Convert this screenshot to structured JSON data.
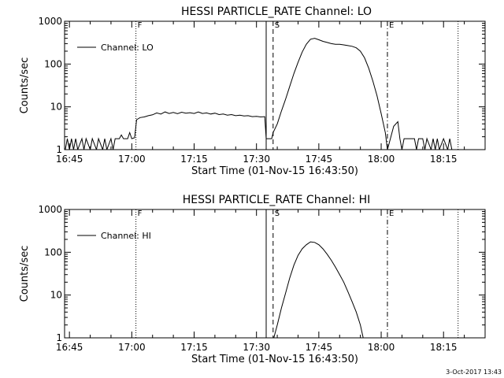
{
  "chart_data": [
    {
      "type": "line",
      "title": "HESSI PARTICLE_RATE Channel: LO",
      "xlabel": "Start Time (01-Nov-15 16:43:50)",
      "ylabel": "Counts/sec",
      "yscale": "log",
      "ylim": [
        1,
        1000
      ],
      "xlim": [
        "16:43:50",
        "18:25:00"
      ],
      "xticks": [
        "16:45",
        "17:00",
        "17:15",
        "17:30",
        "17:45",
        "18:00",
        "18:15"
      ],
      "yticks": [
        "1",
        "10",
        "100",
        "1000"
      ],
      "legend": {
        "position": "top-left",
        "entries": [
          "Channel: LO"
        ]
      },
      "grid": false,
      "flags": [
        {
          "time": "17:01:00",
          "label": "F",
          "style": "dotted"
        },
        {
          "time": "17:32:20",
          "label": "",
          "style": "solid"
        },
        {
          "time": "17:34:00",
          "label": "S",
          "style": "dashed"
        },
        {
          "time": "18:01:30",
          "label": "E",
          "style": "dashdot"
        },
        {
          "time": "18:18:30",
          "label": "",
          "style": "dotted"
        }
      ],
      "series": [
        {
          "values": [
            [
              "16:44:00",
              1
            ],
            [
              "16:44:30",
              1.8
            ],
            [
              "16:45:00",
              1
            ],
            [
              "16:45:30",
              1.8
            ],
            [
              "16:46:00",
              1
            ],
            [
              "16:46:30",
              1.8
            ],
            [
              "16:47:00",
              1
            ],
            [
              "16:48:00",
              1.8
            ],
            [
              "16:48:30",
              1
            ],
            [
              "16:49:00",
              1.8
            ],
            [
              "16:50:00",
              1
            ],
            [
              "16:50:30",
              1.8
            ],
            [
              "16:51:30",
              1
            ],
            [
              "16:52:00",
              1.8
            ],
            [
              "16:53:00",
              1
            ],
            [
              "16:53:30",
              1.8
            ],
            [
              "16:54:00",
              1
            ],
            [
              "16:55:00",
              1.8
            ],
            [
              "16:55:30",
              1
            ],
            [
              "16:56:00",
              1.8
            ],
            [
              "16:57:00",
              1.8
            ],
            [
              "16:57:30",
              2.2
            ],
            [
              "16:58:00",
              1.8
            ],
            [
              "16:59:00",
              1.8
            ],
            [
              "16:59:30",
              2.5
            ],
            [
              "17:00:00",
              1.8
            ],
            [
              "17:00:40",
              1.9
            ],
            [
              "17:01:10",
              5
            ],
            [
              "17:02:00",
              5.6
            ],
            [
              "17:03:00",
              5.8
            ],
            [
              "17:04:00",
              6.2
            ],
            [
              "17:05:00",
              6.5
            ],
            [
              "17:06:00",
              7.2
            ],
            [
              "17:07:00",
              6.8
            ],
            [
              "17:08:00",
              7.6
            ],
            [
              "17:09:00",
              7
            ],
            [
              "17:10:00",
              7.4
            ],
            [
              "17:11:00",
              6.9
            ],
            [
              "17:12:00",
              7.5
            ],
            [
              "17:13:00",
              7.1
            ],
            [
              "17:14:00",
              7.3
            ],
            [
              "17:15:00",
              7
            ],
            [
              "17:16:00",
              7.6
            ],
            [
              "17:17:00",
              7
            ],
            [
              "17:18:00",
              7.2
            ],
            [
              "17:19:00",
              6.8
            ],
            [
              "17:20:00",
              7.1
            ],
            [
              "17:21:00",
              6.6
            ],
            [
              "17:22:00",
              6.8
            ],
            [
              "17:23:00",
              6.4
            ],
            [
              "17:24:00",
              6.6
            ],
            [
              "17:25:00",
              6.2
            ],
            [
              "17:26:00",
              6.4
            ],
            [
              "17:27:00",
              6.1
            ],
            [
              "17:28:00",
              6.2
            ],
            [
              "17:29:00",
              5.9
            ],
            [
              "17:30:00",
              6
            ],
            [
              "17:31:00",
              5.8
            ],
            [
              "17:32:00",
              5.9
            ],
            [
              "17:32:20",
              1.8
            ],
            [
              "17:33:00",
              1.8
            ],
            [
              "17:33:40",
              1.8
            ],
            [
              "17:34:00",
              2.5
            ],
            [
              "17:35:00",
              4
            ],
            [
              "17:36:00",
              8
            ],
            [
              "17:37:00",
              15
            ],
            [
              "17:38:00",
              30
            ],
            [
              "17:39:00",
              60
            ],
            [
              "17:40:00",
              110
            ],
            [
              "17:41:00",
              190
            ],
            [
              "17:42:00",
              290
            ],
            [
              "17:43:00",
              380
            ],
            [
              "17:44:00",
              400
            ],
            [
              "17:45:00",
              370
            ],
            [
              "17:46:00",
              340
            ],
            [
              "17:47:00",
              320
            ],
            [
              "17:48:00",
              300
            ],
            [
              "17:49:00",
              290
            ],
            [
              "17:50:00",
              290
            ],
            [
              "17:51:00",
              280
            ],
            [
              "17:52:00",
              270
            ],
            [
              "17:53:00",
              260
            ],
            [
              "17:54:00",
              240
            ],
            [
              "17:55:00",
              200
            ],
            [
              "17:56:00",
              140
            ],
            [
              "17:57:00",
              80
            ],
            [
              "17:58:00",
              40
            ],
            [
              "17:59:00",
              18
            ],
            [
              "18:00:00",
              7
            ],
            [
              "18:01:00",
              2.5
            ],
            [
              "18:01:30",
              1
            ],
            [
              "18:02:00",
              1.5
            ],
            [
              "18:03:00",
              3.5
            ],
            [
              "18:04:00",
              4.5
            ],
            [
              "18:04:30",
              1.8
            ],
            [
              "18:05:00",
              1
            ],
            [
              "18:05:30",
              1.8
            ],
            [
              "18:06:00",
              1.8
            ],
            [
              "18:07:00",
              1.8
            ],
            [
              "18:08:00",
              1.8
            ],
            [
              "18:08:30",
              1
            ],
            [
              "18:09:00",
              1.8
            ],
            [
              "18:10:00",
              1.8
            ],
            [
              "18:10:30",
              1
            ],
            [
              "18:11:00",
              1.8
            ],
            [
              "18:12:00",
              1
            ],
            [
              "18:12:30",
              1.8
            ],
            [
              "18:13:00",
              1
            ],
            [
              "18:13:30",
              1.8
            ],
            [
              "18:14:00",
              1
            ],
            [
              "18:15:00",
              1.8
            ],
            [
              "18:16:00",
              1
            ],
            [
              "18:16:30",
              1.8
            ],
            [
              "18:17:00",
              1
            ],
            [
              "18:18:00",
              1
            ]
          ]
        }
      ]
    },
    {
      "type": "line",
      "title": "HESSI PARTICLE_RATE Channel: HI",
      "xlabel": "Start Time (01-Nov-15 16:43:50)",
      "ylabel": "Counts/sec",
      "yscale": "log",
      "ylim": [
        1,
        1000
      ],
      "xlim": [
        "16:43:50",
        "18:25:00"
      ],
      "xticks": [
        "16:45",
        "17:00",
        "17:15",
        "17:30",
        "17:45",
        "18:00",
        "18:15"
      ],
      "yticks": [
        "1",
        "10",
        "100",
        "1000"
      ],
      "legend": {
        "position": "top-left",
        "entries": [
          "Channel: HI"
        ]
      },
      "grid": false,
      "flags": [
        {
          "time": "17:01:00",
          "label": "F",
          "style": "dotted"
        },
        {
          "time": "17:32:20",
          "label": "",
          "style": "solid"
        },
        {
          "time": "17:34:00",
          "label": "S",
          "style": "dashed"
        },
        {
          "time": "18:01:30",
          "label": "E",
          "style": "dashdot"
        },
        {
          "time": "18:18:30",
          "label": "",
          "style": "dotted"
        }
      ],
      "series": [
        {
          "values": [
            [
              "17:34:10",
              1
            ],
            [
              "17:35:00",
              2
            ],
            [
              "17:36:00",
              5
            ],
            [
              "17:37:00",
              11
            ],
            [
              "17:38:00",
              25
            ],
            [
              "17:39:00",
              50
            ],
            [
              "17:40:00",
              85
            ],
            [
              "17:41:00",
              120
            ],
            [
              "17:42:00",
              150
            ],
            [
              "17:43:00",
              175
            ],
            [
              "17:44:00",
              170
            ],
            [
              "17:45:00",
              150
            ],
            [
              "17:46:00",
              120
            ],
            [
              "17:47:00",
              90
            ],
            [
              "17:48:00",
              65
            ],
            [
              "17:49:00",
              45
            ],
            [
              "17:50:00",
              30
            ],
            [
              "17:51:00",
              20
            ],
            [
              "17:52:00",
              12
            ],
            [
              "17:53:00",
              7
            ],
            [
              "17:54:00",
              4
            ],
            [
              "17:55:00",
              2
            ],
            [
              "17:55:40",
              1
            ]
          ]
        }
      ]
    }
  ],
  "timestamp": "3-Oct-2017 13:43"
}
